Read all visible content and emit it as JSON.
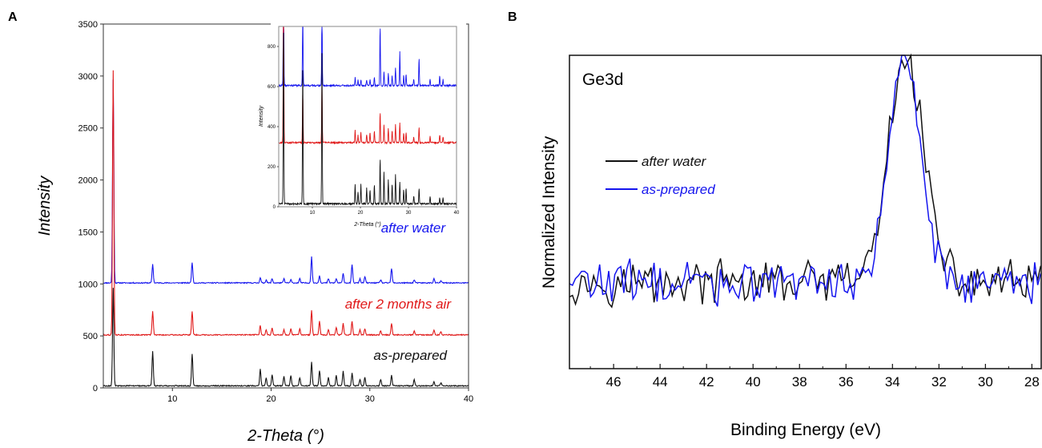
{
  "colors": {
    "blue": "#1515ee",
    "red": "#e01818",
    "black": "#111111"
  },
  "panels": {
    "a": "A",
    "b": "B"
  },
  "chart_data": [
    {
      "type": "line",
      "panel": "A",
      "title": "",
      "xlabel": "2-Theta (°)",
      "ylabel": "Intensity",
      "xlim": [
        3,
        40
      ],
      "ylim": [
        0,
        3500
      ],
      "xticks": [
        10,
        20,
        30,
        40
      ],
      "yticks": [
        0,
        500,
        1000,
        1500,
        2000,
        2500,
        3000,
        3500
      ],
      "grid": false,
      "legend": "labels beside traces",
      "series": [
        {
          "name": "after water",
          "color": "#1515ee",
          "baseline": 1010,
          "peaks": [
            [
              4.0,
              1960
            ],
            [
              8.0,
              180
            ],
            [
              12.0,
              200
            ],
            [
              18.9,
              50
            ],
            [
              19.5,
              30
            ],
            [
              20.1,
              40
            ],
            [
              21.3,
              40
            ],
            [
              22.0,
              30
            ],
            [
              22.9,
              40
            ],
            [
              24.1,
              250
            ],
            [
              24.9,
              70
            ],
            [
              25.8,
              40
            ],
            [
              26.6,
              40
            ],
            [
              27.3,
              90
            ],
            [
              28.2,
              180
            ],
            [
              29.0,
              40
            ],
            [
              29.5,
              60
            ],
            [
              31.1,
              30
            ],
            [
              32.2,
              140
            ],
            [
              34.5,
              30
            ],
            [
              36.5,
              40
            ],
            [
              37.2,
              20
            ]
          ]
        },
        {
          "name": "after 2 months air",
          "color": "#e01818",
          "baseline": 510,
          "peaks": [
            [
              4.0,
              2540
            ],
            [
              8.0,
              230
            ],
            [
              12.0,
              230
            ],
            [
              18.9,
              90
            ],
            [
              19.5,
              50
            ],
            [
              20.1,
              70
            ],
            [
              21.3,
              50
            ],
            [
              22.0,
              60
            ],
            [
              22.9,
              60
            ],
            [
              24.1,
              240
            ],
            [
              24.9,
              130
            ],
            [
              25.8,
              50
            ],
            [
              26.6,
              70
            ],
            [
              27.3,
              110
            ],
            [
              28.2,
              130
            ],
            [
              29.0,
              50
            ],
            [
              29.5,
              60
            ],
            [
              31.1,
              40
            ],
            [
              32.2,
              110
            ],
            [
              34.5,
              40
            ],
            [
              36.5,
              50
            ],
            [
              37.2,
              30
            ]
          ]
        },
        {
          "name": "as-prepared",
          "color": "#111111",
          "baseline": 20,
          "peaks": [
            [
              4.0,
              940
            ],
            [
              8.0,
              330
            ],
            [
              12.0,
              310
            ],
            [
              18.9,
              160
            ],
            [
              19.5,
              80
            ],
            [
              20.1,
              110
            ],
            [
              21.3,
              90
            ],
            [
              22.0,
              100
            ],
            [
              22.9,
              80
            ],
            [
              24.1,
              230
            ],
            [
              24.9,
              150
            ],
            [
              25.8,
              80
            ],
            [
              26.6,
              100
            ],
            [
              27.3,
              140
            ],
            [
              28.2,
              120
            ],
            [
              29.0,
              60
            ],
            [
              29.5,
              80
            ],
            [
              31.1,
              60
            ],
            [
              32.2,
              100
            ],
            [
              34.5,
              60
            ],
            [
              36.5,
              40
            ],
            [
              37.2,
              30
            ]
          ]
        }
      ]
    },
    {
      "type": "line",
      "panel": "A inset",
      "title": "",
      "xlabel": "2-Theta (°)",
      "ylabel": "Intensity",
      "xlim": [
        3,
        40
      ],
      "ylim": [
        0,
        900
      ],
      "xticks": [
        10,
        20,
        30,
        40
      ],
      "yticks": [
        0,
        200,
        400,
        600,
        800
      ],
      "grid": false,
      "series": [
        {
          "name": "after water",
          "color": "#1515ee",
          "baseline": 605,
          "peaks": [
            [
              4.0,
              600
            ],
            [
              8.0,
              400
            ],
            [
              12.0,
              400
            ],
            [
              18.9,
              40
            ],
            [
              19.5,
              30
            ],
            [
              20.1,
              30
            ],
            [
              21.3,
              30
            ],
            [
              22.0,
              30
            ],
            [
              22.9,
              40
            ],
            [
              24.1,
              300
            ],
            [
              24.9,
              70
            ],
            [
              25.8,
              60
            ],
            [
              26.6,
              50
            ],
            [
              27.3,
              90
            ],
            [
              28.2,
              170
            ],
            [
              29.0,
              50
            ],
            [
              29.5,
              60
            ],
            [
              31.1,
              30
            ],
            [
              32.2,
              140
            ],
            [
              34.5,
              30
            ],
            [
              36.5,
              50
            ],
            [
              37.2,
              30
            ]
          ]
        },
        {
          "name": "after 2 months air",
          "color": "#e01818",
          "baseline": 320,
          "peaks": [
            [
              4.0,
              800
            ],
            [
              8.0,
              250
            ],
            [
              12.0,
              300
            ],
            [
              18.9,
              60
            ],
            [
              19.5,
              40
            ],
            [
              20.1,
              50
            ],
            [
              21.3,
              40
            ],
            [
              22.0,
              50
            ],
            [
              22.9,
              60
            ],
            [
              24.1,
              150
            ],
            [
              24.9,
              90
            ],
            [
              25.8,
              70
            ],
            [
              26.6,
              60
            ],
            [
              27.3,
              90
            ],
            [
              28.2,
              100
            ],
            [
              29.0,
              50
            ],
            [
              29.5,
              50
            ],
            [
              31.1,
              30
            ],
            [
              32.2,
              80
            ],
            [
              34.5,
              30
            ],
            [
              36.5,
              40
            ],
            [
              37.2,
              30
            ]
          ]
        },
        {
          "name": "as-prepared",
          "color": "#111111",
          "baseline": 15,
          "peaks": [
            [
              4.0,
              900
            ],
            [
              8.0,
              700
            ],
            [
              12.0,
              750
            ],
            [
              18.9,
              100
            ],
            [
              19.5,
              60
            ],
            [
              20.1,
              100
            ],
            [
              21.3,
              80
            ],
            [
              22.0,
              70
            ],
            [
              22.9,
              100
            ],
            [
              24.1,
              230
            ],
            [
              24.9,
              160
            ],
            [
              25.8,
              120
            ],
            [
              26.6,
              100
            ],
            [
              27.3,
              150
            ],
            [
              28.2,
              110
            ],
            [
              29.0,
              70
            ],
            [
              29.5,
              80
            ],
            [
              31.1,
              40
            ],
            [
              32.2,
              80
            ],
            [
              34.5,
              40
            ],
            [
              36.5,
              30
            ],
            [
              37.2,
              30
            ]
          ]
        }
      ]
    },
    {
      "type": "line",
      "panel": "B",
      "title": "",
      "corner_label": "Ge3d",
      "xlabel": "Binding Energy (eV)",
      "ylabel": "Normalized Intensity",
      "x_reversed": true,
      "xlim": [
        47.9,
        27.6
      ],
      "ylim": [
        0,
        1
      ],
      "xticks": [
        46,
        44,
        42,
        40,
        38,
        36,
        34,
        32,
        30,
        28
      ],
      "yticks": [],
      "grid": false,
      "legend": "upper-left",
      "series": [
        {
          "name": "after water",
          "color": "#111111",
          "center": 33.4,
          "sigma": 0.75,
          "height": 0.72,
          "baseline": 0.275
        },
        {
          "name": "as-prepared",
          "color": "#1515ee",
          "center": 33.45,
          "sigma": 0.68,
          "height": 0.74,
          "baseline": 0.275
        }
      ]
    }
  ]
}
